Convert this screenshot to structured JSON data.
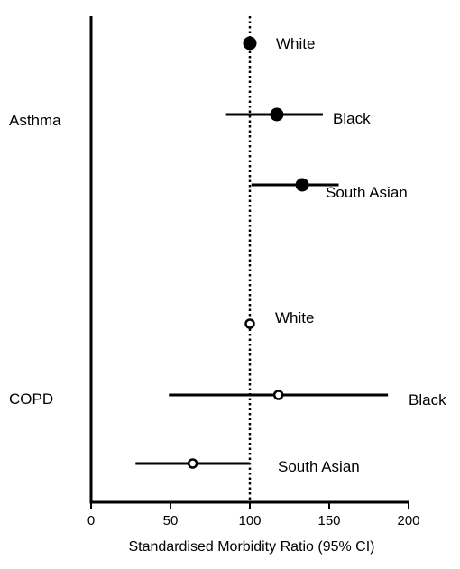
{
  "chart_data": {
    "type": "scatter",
    "subtype": "forest-plot",
    "title": "",
    "xlabel": "Standardised Morbidity Ratio (95% CI)",
    "ylabel": "",
    "xlim": [
      0,
      200
    ],
    "xticks": [
      0,
      50,
      100,
      150,
      200
    ],
    "xtick_labels": [
      "0",
      "50",
      "100",
      "150",
      "200"
    ],
    "reference_line": 100,
    "grid": false,
    "legend": "none",
    "groups": [
      {
        "name": "Asthma",
        "marker": "filled",
        "rows": [
          {
            "label": "White",
            "smr": 100,
            "ci_low": null,
            "ci_high": null
          },
          {
            "label": "Black",
            "smr": 117,
            "ci_low": 85,
            "ci_high": 146
          },
          {
            "label": "South Asian",
            "smr": 133,
            "ci_low": 101,
            "ci_high": 156
          }
        ]
      },
      {
        "name": "COPD",
        "marker": "open",
        "rows": [
          {
            "label": "White",
            "smr": 100,
            "ci_low": null,
            "ci_high": null
          },
          {
            "label": "Black",
            "smr": 118,
            "ci_low": 49,
            "ci_high": 187
          },
          {
            "label": "South Asian",
            "smr": 64,
            "ci_low": 28,
            "ci_high": 100
          }
        ]
      }
    ]
  }
}
